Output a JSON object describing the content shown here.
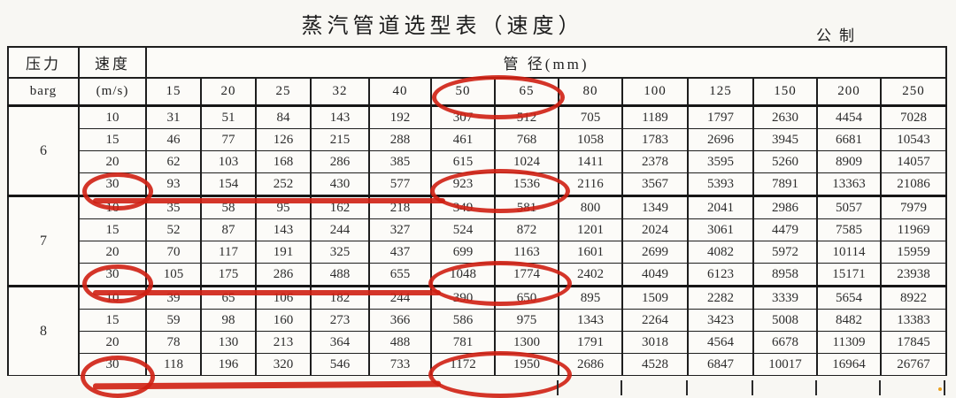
{
  "title": "蒸汽管道选型表（速度）",
  "unit_label": "公制",
  "table": {
    "pressure_header": "压力",
    "pressure_unit": "barg",
    "velocity_header": "速度",
    "velocity_unit": "(m/s)",
    "diameter_header": "管 径(mm)",
    "diameters": [
      "15",
      "20",
      "25",
      "32",
      "40",
      "50",
      "65",
      "80",
      "100",
      "125",
      "150",
      "200",
      "250"
    ],
    "groups": [
      {
        "pressure": "6",
        "rows": [
          {
            "velocity": "10",
            "values": [
              "31",
              "51",
              "84",
              "143",
              "192",
              "307",
              "512",
              "705",
              "1189",
              "1797",
              "2630",
              "4454",
              "7028"
            ]
          },
          {
            "velocity": "15",
            "values": [
              "46",
              "77",
              "126",
              "215",
              "288",
              "461",
              "768",
              "1058",
              "1783",
              "2696",
              "3945",
              "6681",
              "10543"
            ]
          },
          {
            "velocity": "20",
            "values": [
              "62",
              "103",
              "168",
              "286",
              "385",
              "615",
              "1024",
              "1411",
              "2378",
              "3595",
              "5260",
              "8909",
              "14057"
            ]
          },
          {
            "velocity": "30",
            "values": [
              "93",
              "154",
              "252",
              "430",
              "577",
              "923",
              "1536",
              "2116",
              "3567",
              "5393",
              "7891",
              "13363",
              "21086"
            ]
          }
        ]
      },
      {
        "pressure": "7",
        "rows": [
          {
            "velocity": "10",
            "values": [
              "35",
              "58",
              "95",
              "162",
              "218",
              "349",
              "581",
              "800",
              "1349",
              "2041",
              "2986",
              "5057",
              "7979"
            ]
          },
          {
            "velocity": "15",
            "values": [
              "52",
              "87",
              "143",
              "244",
              "327",
              "524",
              "872",
              "1201",
              "2024",
              "3061",
              "4479",
              "7585",
              "11969"
            ]
          },
          {
            "velocity": "20",
            "values": [
              "70",
              "117",
              "191",
              "325",
              "437",
              "699",
              "1163",
              "1601",
              "2699",
              "4082",
              "5972",
              "10114",
              "15959"
            ]
          },
          {
            "velocity": "30",
            "values": [
              "105",
              "175",
              "286",
              "488",
              "655",
              "1048",
              "1774",
              "2402",
              "4049",
              "6123",
              "8958",
              "15171",
              "23938"
            ]
          }
        ]
      },
      {
        "pressure": "8",
        "rows": [
          {
            "velocity": "10",
            "values": [
              "39",
              "65",
              "106",
              "182",
              "244",
              "390",
              "650",
              "895",
              "1509",
              "2282",
              "3339",
              "5654",
              "8922"
            ]
          },
          {
            "velocity": "15",
            "values": [
              "59",
              "98",
              "160",
              "273",
              "366",
              "586",
              "975",
              "1343",
              "2264",
              "3423",
              "5008",
              "8482",
              "13383"
            ]
          },
          {
            "velocity": "20",
            "values": [
              "78",
              "130",
              "213",
              "364",
              "488",
              "781",
              "1300",
              "1791",
              "3018",
              "4564",
              "6678",
              "11309",
              "17845"
            ]
          },
          {
            "velocity": "30",
            "values": [
              "118",
              "196",
              "320",
              "546",
              "733",
              "1172",
              "1950",
              "2686",
              "4528",
              "6847",
              "10017",
              "16964",
              "26767"
            ]
          }
        ]
      }
    ]
  },
  "annotations": {
    "pen_color": "#cf1f12",
    "circled_diameter_headers": [
      "50",
      "65"
    ],
    "circled_velocity": "30",
    "circled_value_pairs": [
      [
        "923",
        "1536"
      ],
      [
        "1048",
        "1774"
      ],
      [
        "1172",
        "1950"
      ]
    ],
    "underlined_rows": [
      "pressure 6 velocity 30",
      "pressure 7 velocity 30",
      "pressure 8 velocity 30"
    ]
  }
}
